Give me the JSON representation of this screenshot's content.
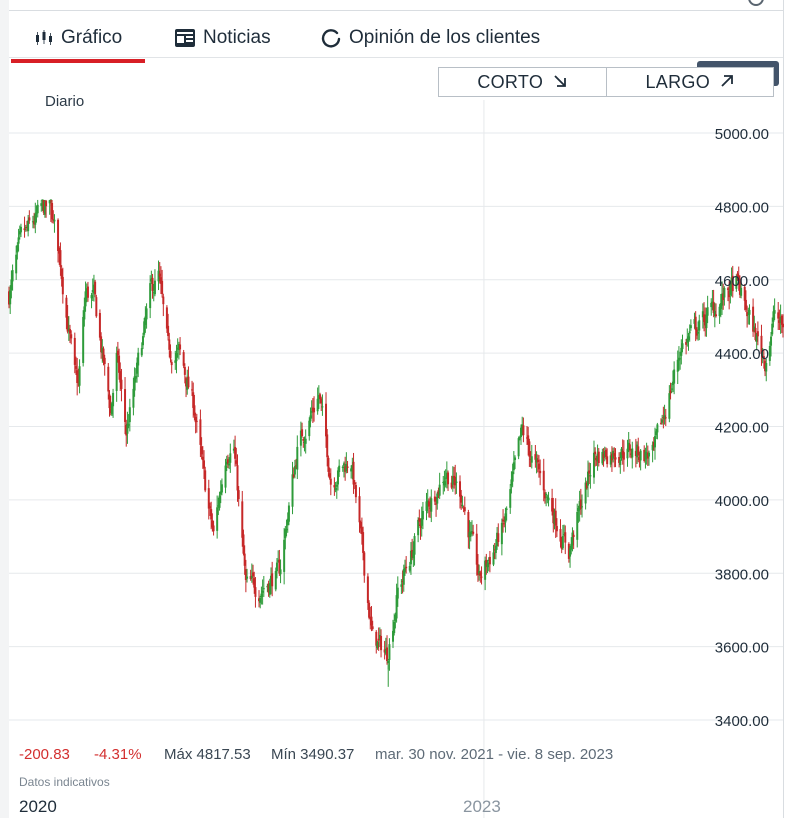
{
  "tabs": [
    {
      "label": "Gráfico",
      "icon": "candlestick-icon",
      "active": true
    },
    {
      "label": "Noticias",
      "icon": "newspaper-icon",
      "active": false
    },
    {
      "label": "Opinión de los clientes",
      "icon": "refresh-icon",
      "active": false
    }
  ],
  "trade": {
    "short_label": "CORTO",
    "long_label": "LARGO"
  },
  "period_label": "Diario",
  "stats": {
    "change": "-200.83",
    "change_pct": "-4.31%",
    "max": "Máx 4817.53",
    "min": "Mín 3490.37",
    "range": "mar. 30 nov. 2021 - vie. 8 sep. 2023"
  },
  "disclaimer": "Datos indicativos",
  "timeline": {
    "start_year": "2020",
    "marker_year": "2023"
  },
  "colors": {
    "up": "#2e9b3a",
    "down": "#c62828",
    "accent": "#d81f26",
    "grid": "#e6e9ec"
  },
  "chart_data": {
    "type": "candlestick",
    "interval": "daily",
    "yticks": [
      3400,
      3600,
      3800,
      4000,
      4200,
      4400,
      4600,
      4800,
      5000
    ],
    "ylim": [
      3400,
      5000
    ],
    "ytick_labels": [
      "3400.00",
      "3600.00",
      "3800.00",
      "4000.00",
      "4200.00",
      "4400.00",
      "4600.00",
      "4800.00",
      "5000.00"
    ],
    "x_range": [
      "2021-11-30",
      "2023-09-08"
    ],
    "max": 4817.53,
    "min": 3490.37,
    "close_anchors": [
      [
        "2021-11-30",
        4560
      ],
      [
        "2021-12-10",
        4700
      ],
      [
        "2021-12-28",
        4790
      ],
      [
        "2022-01-04",
        4790
      ],
      [
        "2022-01-12",
        4650
      ],
      [
        "2022-01-24",
        4330
      ],
      [
        "2022-01-27",
        4310
      ],
      [
        "2022-02-02",
        4560
      ],
      [
        "2022-02-09",
        4550
      ],
      [
        "2022-02-23",
        4240
      ],
      [
        "2022-02-28",
        4390
      ],
      [
        "2022-03-08",
        4180
      ],
      [
        "2022-03-29",
        4570
      ],
      [
        "2022-04-04",
        4610
      ],
      [
        "2022-04-12",
        4400
      ],
      [
        "2022-04-21",
        4400
      ],
      [
        "2022-05-04",
        4250
      ],
      [
        "2022-05-12",
        4050
      ],
      [
        "2022-05-20",
        3900
      ],
      [
        "2022-05-31",
        4140
      ],
      [
        "2022-06-06",
        4150
      ],
      [
        "2022-06-16",
        3760
      ],
      [
        "2022-06-27",
        3760
      ],
      [
        "2022-07-14",
        3800
      ],
      [
        "2022-07-29",
        4140
      ],
      [
        "2022-08-16",
        4290
      ],
      [
        "2022-08-26",
        4060
      ],
      [
        "2022-09-12",
        4110
      ],
      [
        "2022-09-30",
        3620
      ],
      [
        "2022-10-12",
        3580
      ],
      [
        "2022-10-21",
        3750
      ],
      [
        "2022-11-01",
        3850
      ],
      [
        "2022-11-10",
        3950
      ],
      [
        "2022-11-30",
        4080
      ],
      [
        "2022-12-13",
        4020
      ],
      [
        "2022-12-28",
        3780
      ],
      [
        "2023-01-18",
        3930
      ],
      [
        "2023-02-02",
        4180
      ],
      [
        "2023-02-23",
        4010
      ],
      [
        "2023-03-13",
        3860
      ],
      [
        "2023-04-03",
        4120
      ],
      [
        "2023-04-27",
        4140
      ],
      [
        "2023-05-23",
        4120
      ],
      [
        "2023-06-15",
        4420
      ],
      [
        "2023-07-31",
        4590
      ],
      [
        "2023-08-24",
        4380
      ],
      [
        "2023-09-01",
        4510
      ],
      [
        "2023-09-08",
        4460
      ]
    ]
  }
}
